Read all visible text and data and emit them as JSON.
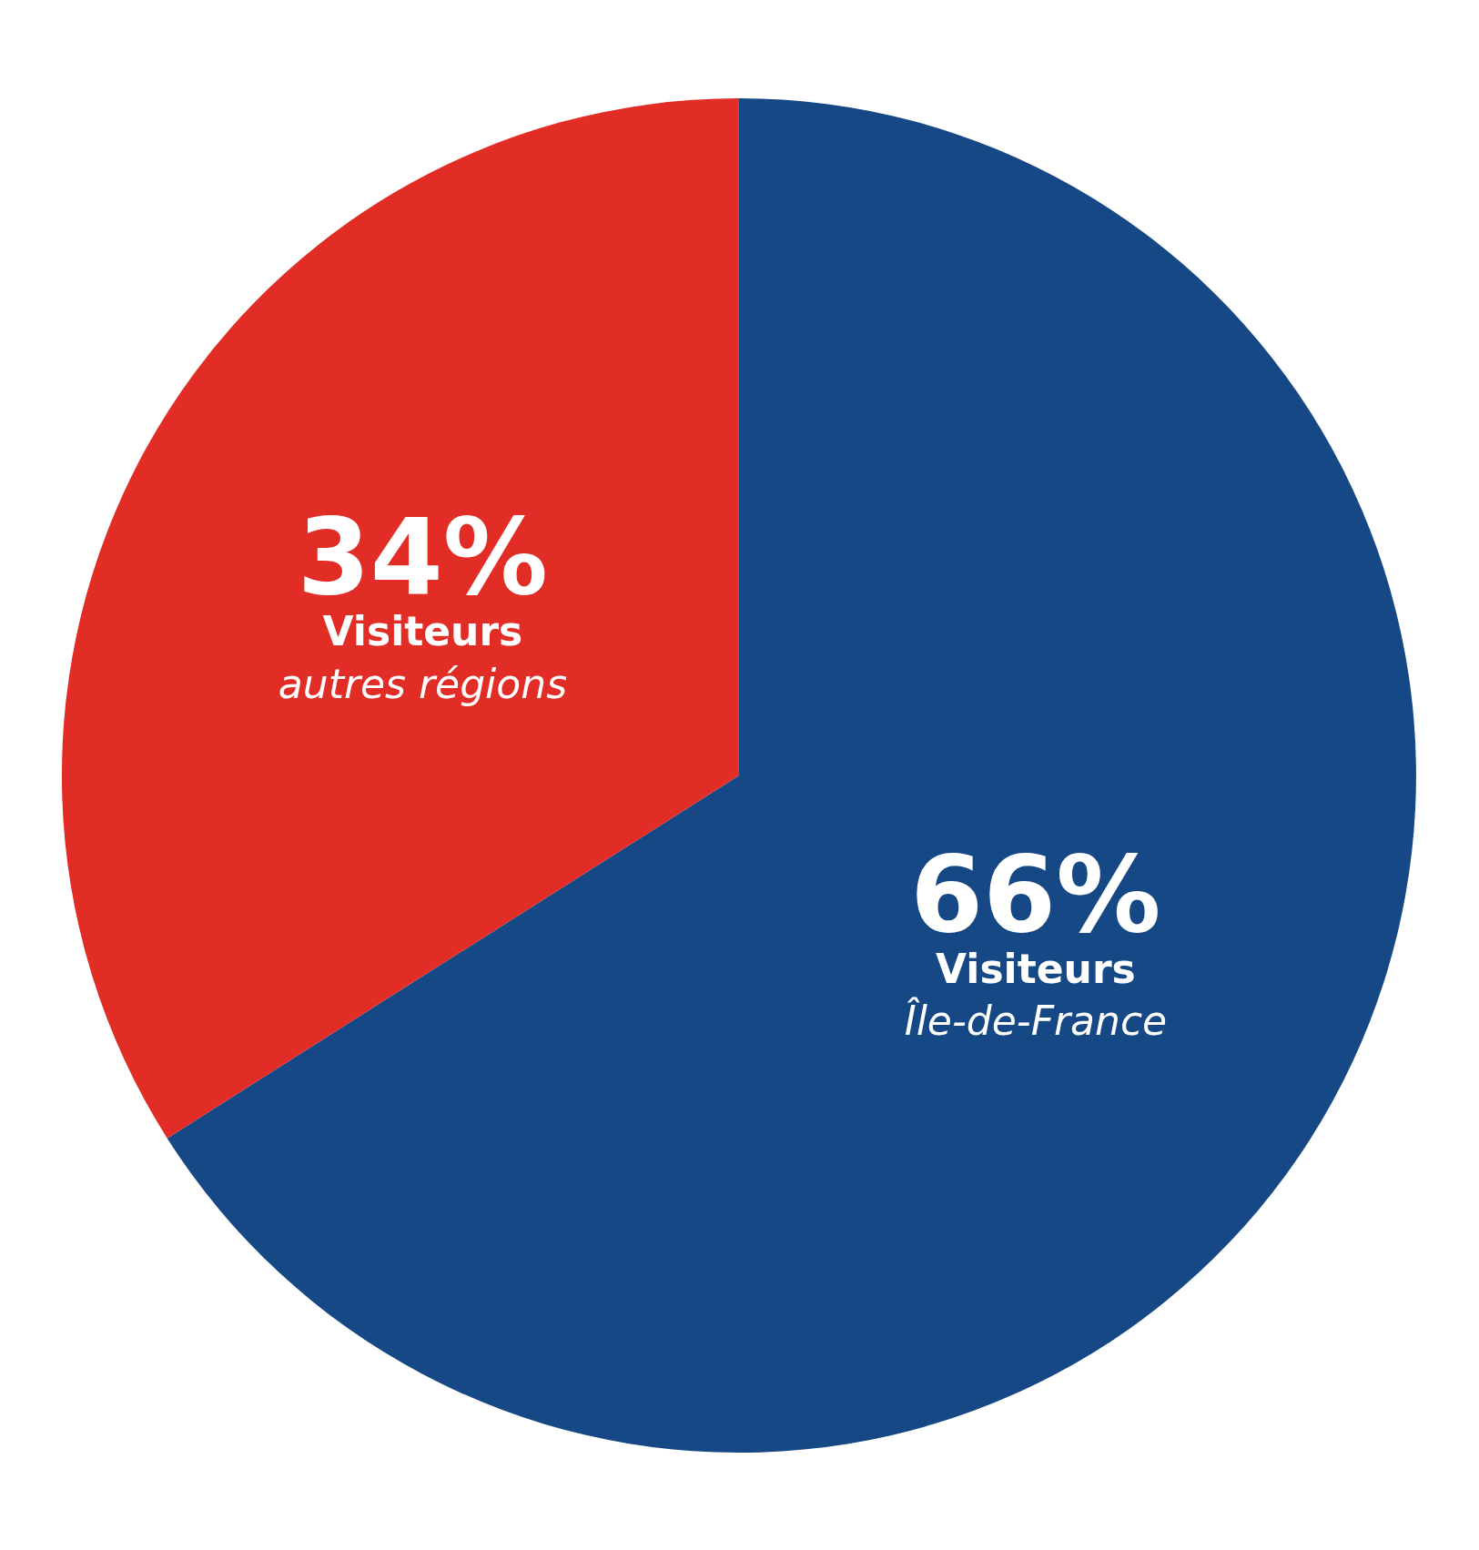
{
  "chart_data": {
    "type": "pie",
    "categories": [
      "Visiteurs\nÎle-de-France",
      "Visiteurs\nautres régions"
    ],
    "values": [
      66,
      34
    ],
    "value_labels": [
      "66%",
      "34%"
    ],
    "colors": [
      "#154885",
      "#e22d26"
    ],
    "legend": false
  }
}
